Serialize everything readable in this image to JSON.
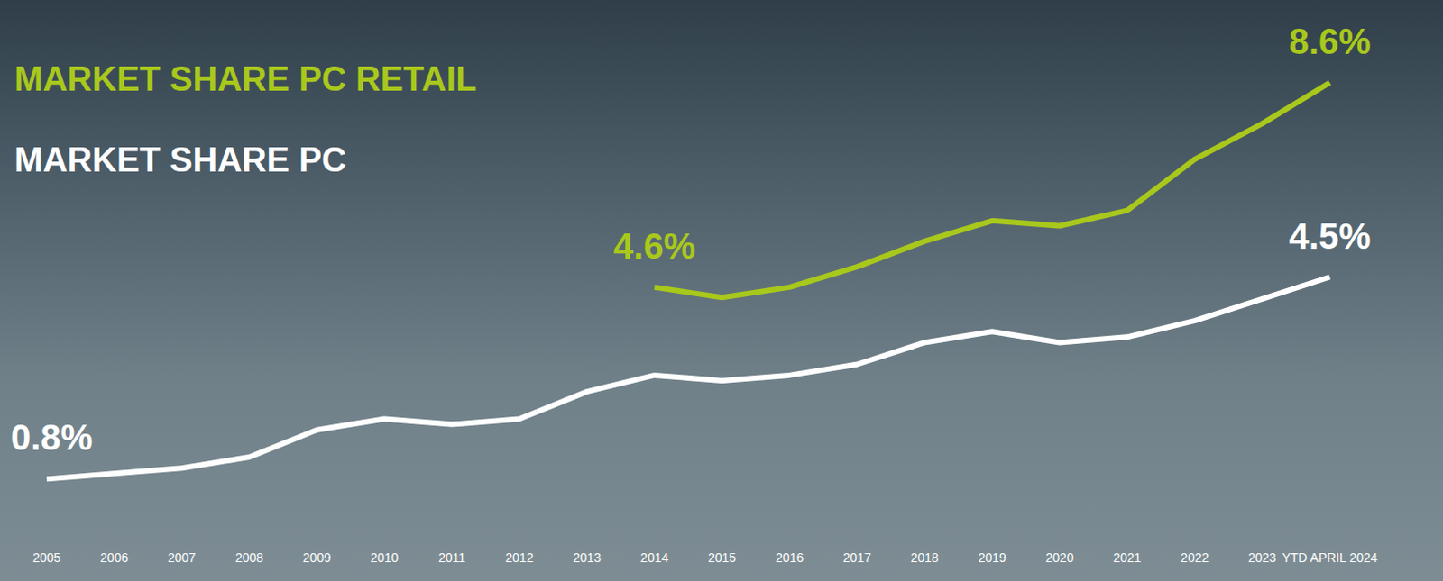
{
  "chart_data": {
    "type": "line",
    "categories": [
      "2005",
      "2006",
      "2007",
      "2008",
      "2009",
      "2010",
      "2011",
      "2012",
      "2013",
      "2014",
      "2015",
      "2016",
      "2017",
      "2018",
      "2019",
      "2020",
      "2021",
      "2022",
      "2023",
      "YTD APRIL 2024"
    ],
    "series": [
      {
        "name": "MARKET SHARE PC RETAIL",
        "color": "#a9c81c",
        "axis": "y2",
        "values": [
          null,
          null,
          null,
          null,
          null,
          null,
          null,
          null,
          null,
          4.6,
          4.4,
          4.6,
          5.0,
          5.5,
          5.9,
          5.8,
          6.1,
          7.1,
          7.8,
          8.6
        ],
        "value_labels": [
          null,
          null,
          null,
          null,
          null,
          null,
          null,
          null,
          null,
          "4.6%",
          null,
          null,
          null,
          null,
          null,
          null,
          null,
          null,
          null,
          "8.6%"
        ]
      },
      {
        "name": "MARKET SHARE PC",
        "color": "#ffffff",
        "values": [
          0.8,
          0.9,
          1.0,
          1.2,
          1.7,
          1.9,
          1.8,
          1.9,
          2.4,
          2.7,
          2.6,
          2.7,
          2.9,
          3.3,
          3.5,
          3.3,
          3.4,
          3.7,
          4.1,
          4.5
        ],
        "value_labels": [
          "0.8%",
          null,
          null,
          null,
          null,
          null,
          null,
          null,
          null,
          null,
          null,
          null,
          null,
          null,
          null,
          null,
          null,
          null,
          null,
          "4.5%"
        ]
      }
    ],
    "ylim": [
      0,
      9
    ],
    "yticks": [
      0,
      3,
      6,
      9
    ],
    "y2lim": [
      0,
      9.6
    ],
    "y2ticks": [
      0,
      3.2,
      6.4,
      9.6
    ],
    "grid": false,
    "legend": "upper left",
    "tick_labels": "x",
    "data_labels": true
  }
}
